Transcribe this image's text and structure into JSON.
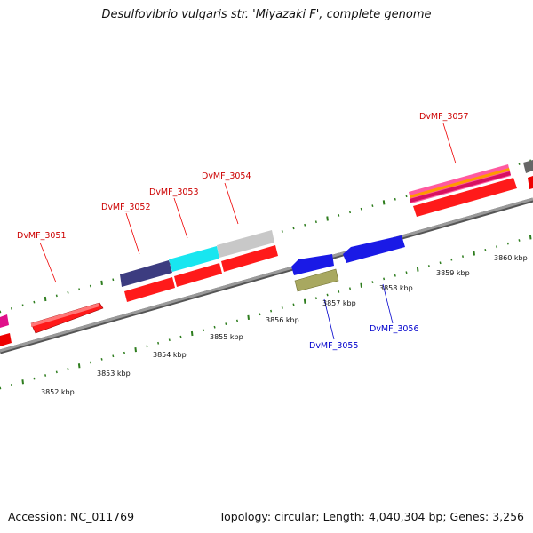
{
  "title": "Desulfovibrio vulgaris str. 'Miyazaki F', complete genome",
  "footer": {
    "accession": "Accession: NC_011769",
    "topology": "Topology: circular; Length: 4,040,304 bp; Genes: 3,256"
  },
  "colors": {
    "tick": "#2e7d1e",
    "forward_label": "#cc0000",
    "reverse_label": "#0000cc",
    "backbone": "#8f8f8f"
  },
  "scale_labels": [
    "3852 kbp",
    "3853 kbp",
    "3854 kbp",
    "3855 kbp",
    "3856 kbp",
    "3857 kbp",
    "3858 kbp",
    "3859 kbp",
    "3860 kbp"
  ],
  "gene_labels": [
    {
      "text": "DvMF_3051",
      "strand": "forward"
    },
    {
      "text": "DvMF_3052",
      "strand": "forward"
    },
    {
      "text": "DvMF_3053",
      "strand": "forward"
    },
    {
      "text": "DvMF_3054",
      "strand": "forward"
    },
    {
      "text": "DvMF_3057",
      "strand": "forward"
    },
    {
      "text": "DvMF_3055",
      "strand": "reverse"
    },
    {
      "text": "DvMF_3056",
      "strand": "reverse"
    }
  ]
}
